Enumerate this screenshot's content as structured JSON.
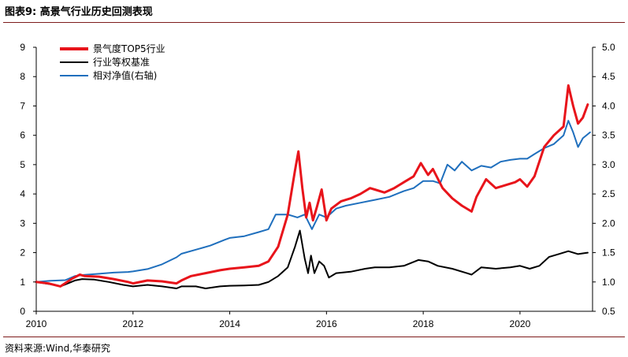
{
  "figure": {
    "title": "图表9:  高景气行业历史回测表现",
    "source": "资料来源:Wind,华泰研究"
  },
  "chart_data": {
    "type": "line",
    "title": "高景气行业历史回测表现",
    "x_ticks": [
      "2010",
      "2012",
      "2014",
      "2016",
      "2018",
      "2020"
    ],
    "x_range": [
      2010,
      2021.5
    ],
    "y_left": {
      "range": [
        0,
        9
      ],
      "ticks": [
        "0",
        "1",
        "2",
        "3",
        "4",
        "5",
        "6",
        "7",
        "8",
        "9"
      ]
    },
    "y_right": {
      "range": [
        0.5,
        5.0
      ],
      "ticks": [
        "0.5",
        "1.0",
        "1.5",
        "2.0",
        "2.5",
        "3.0",
        "3.5",
        "4.0",
        "4.5",
        "5.0"
      ]
    },
    "grid": false,
    "legend_position": "top-left",
    "series": [
      {
        "name": "景气度TOP5行业",
        "axis": "left",
        "color": "#e8141b",
        "points": [
          [
            2010.0,
            1.0
          ],
          [
            2010.25,
            0.95
          ],
          [
            2010.5,
            0.85
          ],
          [
            2010.75,
            1.12
          ],
          [
            2010.9,
            1.25
          ],
          [
            2011.0,
            1.2
          ],
          [
            2011.3,
            1.18
          ],
          [
            2011.6,
            1.1
          ],
          [
            2011.9,
            1.0
          ],
          [
            2012.0,
            0.95
          ],
          [
            2012.3,
            1.05
          ],
          [
            2012.6,
            1.02
          ],
          [
            2012.9,
            0.95
          ],
          [
            2013.0,
            1.05
          ],
          [
            2013.2,
            1.2
          ],
          [
            2013.5,
            1.3
          ],
          [
            2013.8,
            1.4
          ],
          [
            2014.0,
            1.45
          ],
          [
            2014.3,
            1.5
          ],
          [
            2014.6,
            1.55
          ],
          [
            2014.8,
            1.7
          ],
          [
            2015.0,
            2.2
          ],
          [
            2015.2,
            3.3
          ],
          [
            2015.35,
            4.8
          ],
          [
            2015.42,
            5.45
          ],
          [
            2015.5,
            4.2
          ],
          [
            2015.58,
            3.2
          ],
          [
            2015.65,
            3.7
          ],
          [
            2015.72,
            3.1
          ],
          [
            2015.8,
            3.55
          ],
          [
            2015.9,
            4.15
          ],
          [
            2016.0,
            3.1
          ],
          [
            2016.1,
            3.5
          ],
          [
            2016.3,
            3.75
          ],
          [
            2016.5,
            3.85
          ],
          [
            2016.7,
            4.0
          ],
          [
            2016.9,
            4.2
          ],
          [
            2017.0,
            4.15
          ],
          [
            2017.2,
            4.05
          ],
          [
            2017.4,
            4.2
          ],
          [
            2017.6,
            4.4
          ],
          [
            2017.8,
            4.6
          ],
          [
            2017.95,
            5.05
          ],
          [
            2018.1,
            4.65
          ],
          [
            2018.2,
            4.85
          ],
          [
            2018.4,
            4.2
          ],
          [
            2018.6,
            3.85
          ],
          [
            2018.8,
            3.6
          ],
          [
            2019.0,
            3.4
          ],
          [
            2019.1,
            3.9
          ],
          [
            2019.3,
            4.5
          ],
          [
            2019.5,
            4.2
          ],
          [
            2019.7,
            4.3
          ],
          [
            2019.9,
            4.4
          ],
          [
            2020.0,
            4.5
          ],
          [
            2020.15,
            4.25
          ],
          [
            2020.3,
            4.6
          ],
          [
            2020.5,
            5.6
          ],
          [
            2020.7,
            6.0
          ],
          [
            2020.9,
            6.3
          ],
          [
            2021.0,
            7.7
          ],
          [
            2021.1,
            7.0
          ],
          [
            2021.2,
            6.4
          ],
          [
            2021.3,
            6.6
          ],
          [
            2021.4,
            7.05
          ]
        ]
      },
      {
        "name": "行业等权基准",
        "axis": "left",
        "color": "#000000",
        "points": [
          [
            2010.0,
            1.0
          ],
          [
            2010.3,
            0.92
          ],
          [
            2010.5,
            0.85
          ],
          [
            2010.8,
            1.05
          ],
          [
            2010.95,
            1.1
          ],
          [
            2011.2,
            1.08
          ],
          [
            2011.5,
            1.0
          ],
          [
            2011.8,
            0.9
          ],
          [
            2012.0,
            0.85
          ],
          [
            2012.3,
            0.9
          ],
          [
            2012.6,
            0.85
          ],
          [
            2012.9,
            0.78
          ],
          [
            2013.0,
            0.85
          ],
          [
            2013.3,
            0.85
          ],
          [
            2013.5,
            0.78
          ],
          [
            2013.8,
            0.85
          ],
          [
            2014.0,
            0.87
          ],
          [
            2014.3,
            0.88
          ],
          [
            2014.6,
            0.9
          ],
          [
            2014.8,
            1.0
          ],
          [
            2015.0,
            1.2
          ],
          [
            2015.2,
            1.5
          ],
          [
            2015.35,
            2.2
          ],
          [
            2015.45,
            2.75
          ],
          [
            2015.55,
            1.8
          ],
          [
            2015.62,
            1.3
          ],
          [
            2015.68,
            1.9
          ],
          [
            2015.75,
            1.3
          ],
          [
            2015.85,
            1.7
          ],
          [
            2015.95,
            1.55
          ],
          [
            2016.05,
            1.15
          ],
          [
            2016.2,
            1.3
          ],
          [
            2016.5,
            1.35
          ],
          [
            2016.8,
            1.45
          ],
          [
            2017.0,
            1.5
          ],
          [
            2017.3,
            1.5
          ],
          [
            2017.6,
            1.55
          ],
          [
            2017.9,
            1.75
          ],
          [
            2018.1,
            1.7
          ],
          [
            2018.3,
            1.55
          ],
          [
            2018.6,
            1.45
          ],
          [
            2018.9,
            1.3
          ],
          [
            2019.0,
            1.25
          ],
          [
            2019.2,
            1.5
          ],
          [
            2019.5,
            1.45
          ],
          [
            2019.8,
            1.5
          ],
          [
            2020.0,
            1.55
          ],
          [
            2020.2,
            1.45
          ],
          [
            2020.4,
            1.55
          ],
          [
            2020.6,
            1.85
          ],
          [
            2020.8,
            1.95
          ],
          [
            2021.0,
            2.05
          ],
          [
            2021.2,
            1.95
          ],
          [
            2021.4,
            2.0
          ]
        ]
      },
      {
        "name": "相对净值(右轴)",
        "axis": "right",
        "color": "#1f6fbd",
        "points": [
          [
            2010.0,
            1.0
          ],
          [
            2010.3,
            1.02
          ],
          [
            2010.6,
            1.03
          ],
          [
            2010.8,
            1.1
          ],
          [
            2011.0,
            1.12
          ],
          [
            2011.3,
            1.14
          ],
          [
            2011.6,
            1.16
          ],
          [
            2011.9,
            1.17
          ],
          [
            2012.0,
            1.18
          ],
          [
            2012.3,
            1.22
          ],
          [
            2012.6,
            1.3
          ],
          [
            2012.9,
            1.42
          ],
          [
            2013.0,
            1.48
          ],
          [
            2013.3,
            1.55
          ],
          [
            2013.6,
            1.62
          ],
          [
            2013.9,
            1.72
          ],
          [
            2014.0,
            1.75
          ],
          [
            2014.3,
            1.78
          ],
          [
            2014.6,
            1.85
          ],
          [
            2014.8,
            1.9
          ],
          [
            2014.95,
            2.15
          ],
          [
            2015.2,
            2.15
          ],
          [
            2015.4,
            2.1
          ],
          [
            2015.55,
            2.15
          ],
          [
            2015.7,
            1.9
          ],
          [
            2015.85,
            2.15
          ],
          [
            2016.0,
            2.1
          ],
          [
            2016.2,
            2.25
          ],
          [
            2016.4,
            2.3
          ],
          [
            2016.7,
            2.35
          ],
          [
            2017.0,
            2.4
          ],
          [
            2017.3,
            2.45
          ],
          [
            2017.6,
            2.55
          ],
          [
            2017.8,
            2.6
          ],
          [
            2018.0,
            2.72
          ],
          [
            2018.2,
            2.72
          ],
          [
            2018.35,
            2.68
          ],
          [
            2018.5,
            3.0
          ],
          [
            2018.65,
            2.9
          ],
          [
            2018.8,
            3.05
          ],
          [
            2019.0,
            2.9
          ],
          [
            2019.2,
            2.98
          ],
          [
            2019.4,
            2.95
          ],
          [
            2019.6,
            3.05
          ],
          [
            2019.8,
            3.08
          ],
          [
            2020.0,
            3.1
          ],
          [
            2020.15,
            3.1
          ],
          [
            2020.3,
            3.18
          ],
          [
            2020.5,
            3.28
          ],
          [
            2020.7,
            3.35
          ],
          [
            2020.9,
            3.5
          ],
          [
            2021.0,
            3.75
          ],
          [
            2021.1,
            3.55
          ],
          [
            2021.2,
            3.3
          ],
          [
            2021.3,
            3.45
          ],
          [
            2021.45,
            3.55
          ]
        ]
      }
    ]
  }
}
